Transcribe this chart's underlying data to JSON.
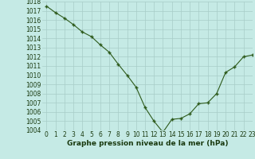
{
  "x": [
    0,
    1,
    2,
    3,
    4,
    5,
    6,
    7,
    8,
    9,
    10,
    11,
    12,
    13,
    14,
    15,
    16,
    17,
    18,
    19,
    20,
    21,
    22,
    23
  ],
  "y": [
    1017.5,
    1016.8,
    1016.2,
    1015.5,
    1014.7,
    1014.2,
    1013.3,
    1012.5,
    1011.2,
    1010.0,
    1008.7,
    1006.5,
    1005.0,
    1003.8,
    1005.2,
    1005.3,
    1005.8,
    1006.9,
    1007.0,
    1008.0,
    1010.3,
    1010.9,
    1012.0,
    1012.2
  ],
  "line_color": "#2d5a1b",
  "marker": "+",
  "bg_color": "#c5eae5",
  "grid_color": "#a8cdc8",
  "xlabel": "Graphe pression niveau de la mer (hPa)",
  "ylim": [
    1004,
    1018
  ],
  "xlim": [
    -0.5,
    23
  ],
  "yticks": [
    1004,
    1005,
    1006,
    1007,
    1008,
    1009,
    1010,
    1011,
    1012,
    1013,
    1014,
    1015,
    1016,
    1017,
    1018
  ],
  "xticks": [
    0,
    1,
    2,
    3,
    4,
    5,
    6,
    7,
    8,
    9,
    10,
    11,
    12,
    13,
    14,
    15,
    16,
    17,
    18,
    19,
    20,
    21,
    22,
    23
  ],
  "xlabel_fontsize": 6.5,
  "tick_fontsize": 5.5
}
